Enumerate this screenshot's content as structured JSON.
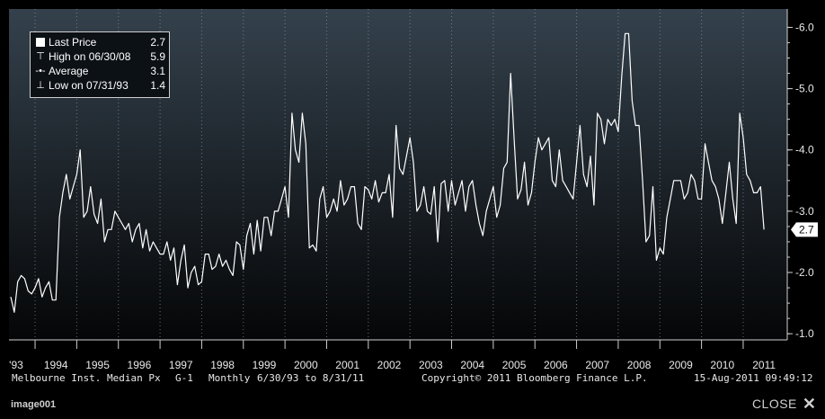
{
  "legend": [
    {
      "symbol": "last-price-swatch",
      "label": "Last Price",
      "value": "2.7"
    },
    {
      "symbol": "high-marker-icon",
      "label": "High on 06/30/08",
      "value": "5.9"
    },
    {
      "symbol": "average-marker-icon",
      "label": "Average",
      "value": "3.1"
    },
    {
      "symbol": "low-marker-icon",
      "label": "Low on 07/31/93",
      "value": "1.4"
    }
  ],
  "last_price_tag": "2.7",
  "footer": {
    "security": "Melbourne Inst. Median Px",
    "chart_code": "G-1",
    "frequency": "Monthly",
    "range": "6/30/93 to 8/31/11",
    "copyright": "Copyright© 2011 Bloomberg Finance L.P.",
    "timestamp": "15-Aug-2011 09:49:12"
  },
  "bottom_bar": {
    "image_id": "image001",
    "close_label": "CLOSE",
    "close_glyph": "✕"
  },
  "colors": {
    "background": "#000000",
    "plot_top": "#34414c",
    "plot_bottom": "#050607",
    "line": "#ffffff",
    "gridline": "#8a95a0"
  },
  "chart_data": {
    "type": "line",
    "title": "",
    "xlabel": "",
    "ylabel": "",
    "ylim": [
      0.9,
      6.3
    ],
    "yticks": [
      "1.0",
      "2.0",
      "3.0",
      "4.0",
      "5.0",
      "6.0"
    ],
    "xticks": [
      "'93",
      "1994",
      "1995",
      "1996",
      "1997",
      "1998",
      "1999",
      "2000",
      "2001",
      "2002",
      "2003",
      "2004",
      "2005",
      "2006",
      "2007",
      "2008",
      "2009",
      "2010",
      "2011"
    ],
    "x_start": "1993-06",
    "x_end": "2011-08",
    "grid": "vertical dotted at year boundaries",
    "legend_position": "top-left",
    "series": [
      {
        "name": "Last Price",
        "frequency": "monthly",
        "values": [
          1.6,
          1.35,
          1.85,
          1.95,
          1.9,
          1.7,
          1.65,
          1.75,
          1.9,
          1.6,
          1.75,
          1.85,
          1.55,
          1.55,
          2.9,
          3.3,
          3.6,
          3.2,
          3.4,
          3.6,
          4.0,
          2.9,
          3.0,
          3.4,
          2.95,
          2.8,
          3.2,
          2.5,
          2.7,
          2.7,
          3.0,
          2.9,
          2.8,
          2.7,
          2.8,
          2.5,
          2.7,
          2.8,
          2.4,
          2.7,
          2.35,
          2.5,
          2.4,
          2.3,
          2.3,
          2.5,
          2.2,
          2.4,
          1.8,
          2.2,
          2.45,
          1.75,
          2.0,
          2.1,
          1.8,
          1.85,
          2.3,
          2.3,
          2.05,
          2.1,
          2.3,
          2.1,
          2.2,
          2.05,
          1.95,
          2.5,
          2.45,
          2.05,
          2.6,
          2.8,
          2.3,
          2.85,
          2.35,
          2.9,
          2.9,
          2.6,
          3.0,
          3.0,
          3.2,
          3.4,
          2.9,
          4.6,
          4.0,
          3.8,
          4.6,
          4.1,
          2.4,
          2.45,
          2.35,
          3.2,
          3.4,
          2.9,
          3.0,
          3.2,
          3.0,
          3.5,
          3.1,
          3.2,
          3.4,
          3.4,
          2.8,
          2.7,
          3.4,
          3.35,
          3.2,
          3.5,
          3.15,
          3.3,
          3.3,
          3.6,
          2.9,
          4.4,
          3.7,
          3.6,
          3.9,
          4.2,
          3.8,
          3.0,
          3.1,
          3.4,
          3.0,
          2.95,
          3.4,
          2.5,
          3.45,
          3.5,
          3.0,
          3.5,
          3.1,
          3.3,
          3.5,
          3.0,
          3.4,
          3.5,
          3.1,
          2.8,
          2.6,
          3.0,
          3.2,
          3.4,
          2.9,
          3.1,
          3.7,
          3.8,
          5.25,
          4.2,
          3.2,
          3.35,
          3.8,
          3.1,
          3.3,
          3.8,
          4.2,
          4.0,
          4.1,
          4.2,
          3.5,
          3.4,
          4.0,
          3.5,
          3.4,
          3.3,
          3.2,
          3.8,
          4.4,
          3.6,
          3.4,
          3.9,
          3.1,
          4.6,
          4.5,
          4.1,
          4.5,
          4.4,
          4.5,
          4.3,
          5.2,
          5.9,
          5.9,
          4.8,
          4.4,
          4.4,
          3.5,
          2.5,
          2.6,
          3.4,
          2.2,
          2.4,
          2.3,
          2.9,
          3.2,
          3.5,
          3.5,
          3.5,
          3.2,
          3.3,
          3.6,
          3.5,
          3.2,
          3.2,
          4.1,
          3.8,
          3.5,
          3.4,
          3.2,
          2.8,
          3.3,
          3.8,
          3.2,
          2.8,
          4.6,
          4.2,
          3.6,
          3.5,
          3.3,
          3.3,
          3.4,
          2.7
        ]
      }
    ]
  }
}
